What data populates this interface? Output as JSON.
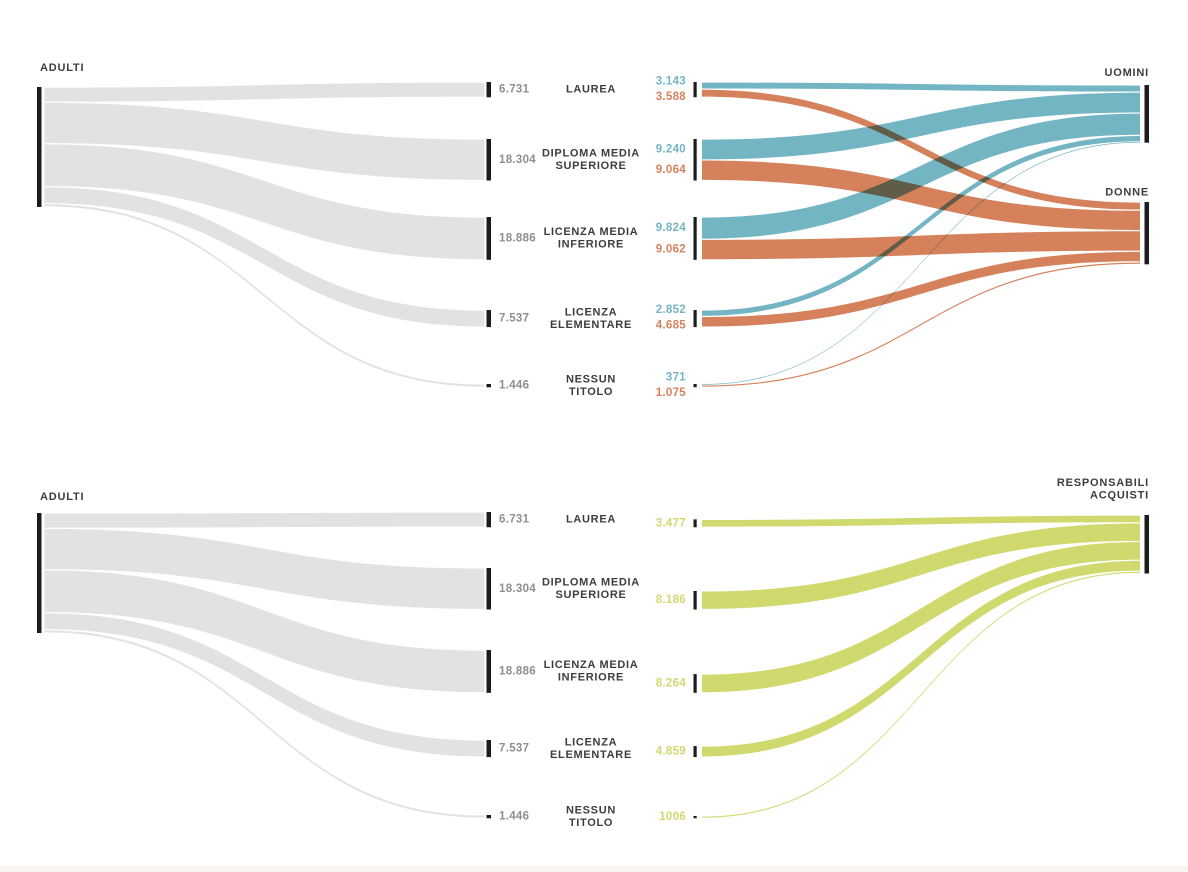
{
  "colors": {
    "flow_gray": "#e2e2e2",
    "node_bar": "#1c1c1c",
    "uomini_blue": "#74b5c4",
    "donne_orange": "#d5825c",
    "responsabili_green": "#d0d96e",
    "label_dark": "#3d3d3d",
    "value_gray": "#8f8f8f",
    "footer_strip": "#f7f5ee"
  },
  "chart_data": [
    {
      "type": "sankey",
      "left_node": {
        "label": "ADULTI"
      },
      "education_nodes": [
        {
          "id": "laurea",
          "name_lines": [
            "LAUREA"
          ],
          "total_label": "6.731",
          "total": 6731,
          "outflows": [
            {
              "target": "UOMINI",
              "label": "3.143",
              "value": 3143
            },
            {
              "target": "DONNE",
              "label": "3.588",
              "value": 3588
            }
          ]
        },
        {
          "id": "diploma-media-superiore",
          "name_lines": [
            "DIPLOMA MEDIA",
            "SUPERIORE"
          ],
          "total_label": "18.304",
          "total": 18304,
          "outflows": [
            {
              "target": "UOMINI",
              "label": "9.240",
              "value": 9240
            },
            {
              "target": "DONNE",
              "label": "9.064",
              "value": 9064
            }
          ]
        },
        {
          "id": "licenza-media-inferiore",
          "name_lines": [
            "LICENZA MEDIA",
            "INFERIORE"
          ],
          "total_label": "18.886",
          "total": 18886,
          "outflows": [
            {
              "target": "UOMINI",
              "label": "9.824",
              "value": 9824
            },
            {
              "target": "DONNE",
              "label": "9.062",
              "value": 9062
            }
          ]
        },
        {
          "id": "licenza-elementare",
          "name_lines": [
            "LICENZA",
            "ELEMENTARE"
          ],
          "total_label": "7.537",
          "total": 7537,
          "outflows": [
            {
              "target": "UOMINI",
              "label": "2.852",
              "value": 2852
            },
            {
              "target": "DONNE",
              "label": "4.685",
              "value": 4685
            }
          ]
        },
        {
          "id": "nessun-titolo",
          "name_lines": [
            "NESSUN",
            "TITOLO"
          ],
          "total_label": "1.446",
          "total": 1446,
          "outflows": [
            {
              "target": "UOMINI",
              "label": "371",
              "value": 371
            },
            {
              "target": "DONNE",
              "label": "1.075",
              "value": 1075
            }
          ]
        }
      ],
      "right_nodes": [
        {
          "id": "uomini",
          "label_lines": [
            "UOMINI"
          ],
          "color_key": "uomini_blue"
        },
        {
          "id": "donne",
          "label_lines": [
            "DONNE"
          ],
          "color_key": "donne_orange"
        }
      ]
    },
    {
      "type": "sankey",
      "left_node": {
        "label": "ADULTI"
      },
      "education_nodes": [
        {
          "id": "laurea",
          "name_lines": [
            "LAUREA"
          ],
          "total_label": "6.731",
          "total": 6731,
          "outflows": [
            {
              "target": "RESPONSABILI ACQUISTI",
              "label": "3.477",
              "value": 3477
            }
          ]
        },
        {
          "id": "diploma-media-superiore",
          "name_lines": [
            "DIPLOMA MEDIA",
            "SUPERIORE"
          ],
          "total_label": "18.304",
          "total": 18304,
          "outflows": [
            {
              "target": "RESPONSABILI ACQUISTI",
              "label": "8.186",
              "value": 8186
            }
          ]
        },
        {
          "id": "licenza-media-inferiore",
          "name_lines": [
            "LICENZA MEDIA",
            "INFERIORE"
          ],
          "total_label": "18.886",
          "total": 18886,
          "outflows": [
            {
              "target": "RESPONSABILI ACQUISTI",
              "label": "8.264",
              "value": 8264
            }
          ]
        },
        {
          "id": "licenza-elementare",
          "name_lines": [
            "LICENZA",
            "ELEMENTARE"
          ],
          "total_label": "7.537",
          "total": 7537,
          "outflows": [
            {
              "target": "RESPONSABILI ACQUISTI",
              "label": "4.859",
              "value": 4859
            }
          ]
        },
        {
          "id": "nessun-titolo",
          "name_lines": [
            "NESSUN",
            "TITOLO"
          ],
          "total_label": "1.446",
          "total": 1446,
          "outflows": [
            {
              "target": "RESPONSABILI ACQUISTI",
              "label": "1006",
              "value": 1006
            }
          ]
        }
      ],
      "right_nodes": [
        {
          "id": "responsabili-acquisti",
          "label_lines": [
            "RESPONSABILI",
            "ACQUISTI"
          ],
          "color_key": "responsabili_green"
        }
      ]
    }
  ]
}
